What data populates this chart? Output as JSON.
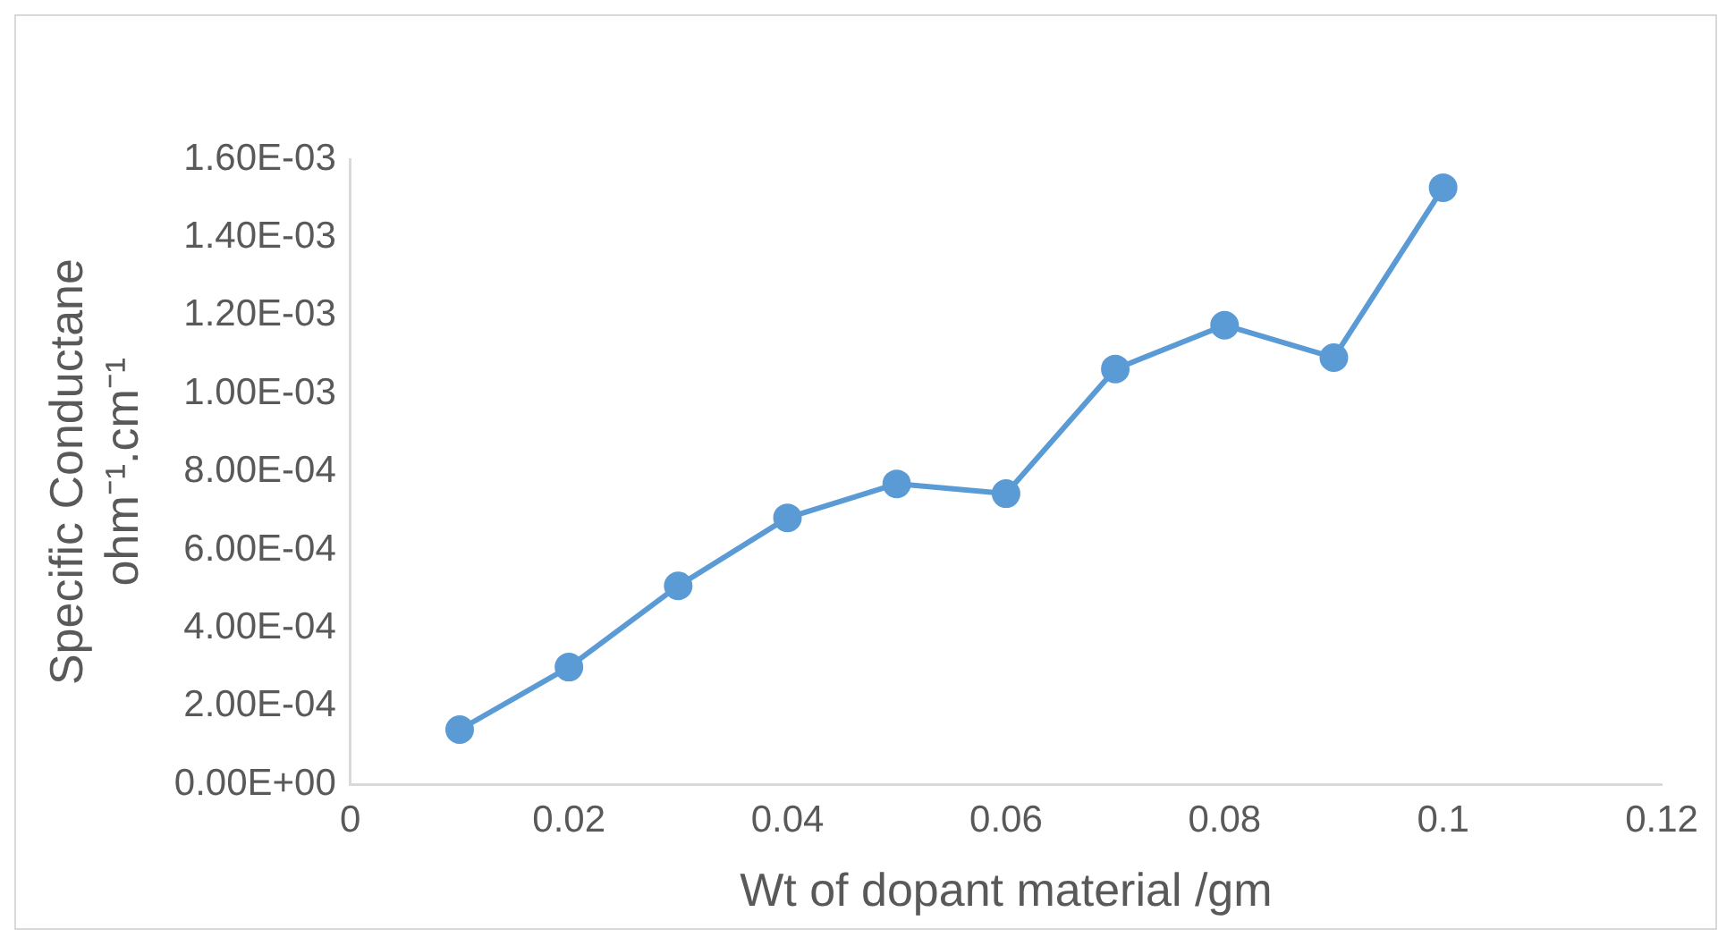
{
  "chart_data": {
    "type": "line",
    "xlabel": "Wt of dopant material /gm",
    "ylabel": "Specific Conductane\nohm⁻¹.cm⁻¹",
    "x": [
      0.01,
      0.02,
      0.03,
      0.04,
      0.05,
      0.06,
      0.07,
      0.08,
      0.09,
      0.1
    ],
    "series": [
      {
        "color": "#5b9bd5",
        "values": [
          0.00014,
          0.0003,
          0.000508,
          0.000682,
          0.000769,
          0.000744,
          0.001063,
          0.001175,
          0.001092,
          0.001527
        ]
      }
    ],
    "xlim": [
      0,
      0.12
    ],
    "xticks": [
      0,
      0.02,
      0.04,
      0.06,
      0.08,
      0.1,
      0.12
    ],
    "ylim": [
      0,
      0.0016
    ],
    "yticks": [
      {
        "value": 0,
        "label": "0.00E+00"
      },
      {
        "value": 0.0002,
        "label": "2.00E-04"
      },
      {
        "value": 0.0004,
        "label": "4.00E-04"
      },
      {
        "value": 0.0006,
        "label": "6.00E-04"
      },
      {
        "value": 0.0008,
        "label": "8.00E-04"
      },
      {
        "value": 0.001,
        "label": "1.00E-03"
      },
      {
        "value": 0.0012,
        "label": "1.20E-03"
      },
      {
        "value": 0.0014,
        "label": "1.40E-03"
      },
      {
        "value": 0.0016,
        "label": "1.60E-03"
      }
    ],
    "grid": false,
    "legend": false,
    "marker": "circle",
    "line_style": "solid"
  }
}
